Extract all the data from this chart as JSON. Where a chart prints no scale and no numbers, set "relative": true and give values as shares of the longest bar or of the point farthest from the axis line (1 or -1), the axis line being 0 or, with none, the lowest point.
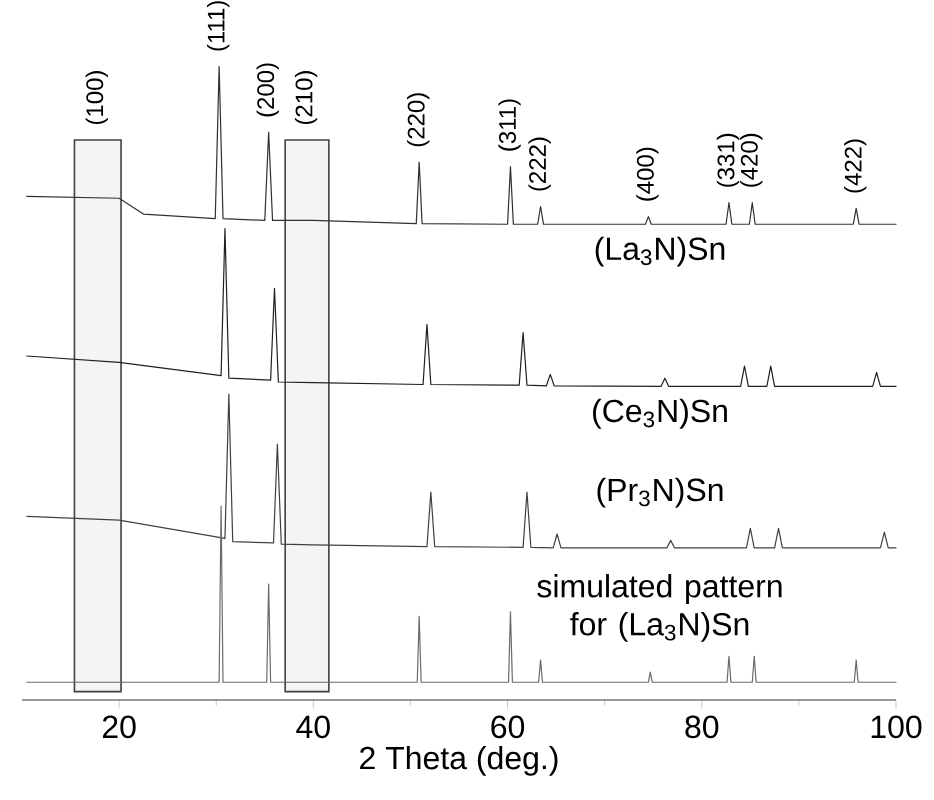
{
  "chart_data": {
    "type": "line",
    "relative": true,
    "xlabel": "2 Theta (deg.)",
    "xlim": [
      10,
      100
    ],
    "xticks": [
      20,
      40,
      60,
      80,
      100
    ],
    "legend": false,
    "grid": false,
    "marker": "none",
    "line_style": "solid",
    "series": [
      {
        "name": "(La$_{3}$N)Sn",
        "color": "#303030",
        "x": [
          10.5,
          20,
          22.5,
          29.9,
          30.3,
          30.7,
          35.0,
          35.4,
          35.8,
          40,
          50.6,
          50.9,
          51.2,
          60.0,
          60.3,
          60.6,
          63.1,
          63.4,
          63.7,
          74.2,
          74.5,
          74.8,
          82.5,
          82.8,
          83.1,
          84.9,
          85.2,
          85.5,
          95.6,
          95.9,
          96.2,
          100
        ],
        "values": [
          0.795,
          0.792,
          0.767,
          0.76,
          1.0,
          0.76,
          0.757,
          0.896,
          0.757,
          0.757,
          0.752,
          0.849,
          0.752,
          0.751,
          0.842,
          0.751,
          0.751,
          0.779,
          0.751,
          0.751,
          0.763,
          0.751,
          0.751,
          0.785,
          0.751,
          0.751,
          0.785,
          0.751,
          0.751,
          0.776,
          0.751,
          0.751
        ]
      },
      {
        "name": "(Ce$_{3}$N)Sn",
        "color": "#202020",
        "x": [
          10.5,
          20,
          30.5,
          30.9,
          31.3,
          35.6,
          36.0,
          36.4,
          40,
          51.3,
          51.7,
          52.1,
          61.2,
          61.6,
          62.0,
          64.0,
          64.4,
          64.8,
          75.8,
          76.2,
          76.6,
          84.0,
          84.4,
          84.8,
          86.7,
          87.1,
          87.5,
          97.6,
          98.0,
          98.4,
          100
        ],
        "values": [
          0.543,
          0.533,
          0.512,
          0.744,
          0.508,
          0.505,
          0.65,
          0.502,
          0.501,
          0.498,
          0.593,
          0.498,
          0.497,
          0.58,
          0.497,
          0.496,
          0.514,
          0.496,
          0.495,
          0.508,
          0.495,
          0.495,
          0.527,
          0.495,
          0.495,
          0.527,
          0.495,
          0.495,
          0.517,
          0.495,
          0.495
        ]
      },
      {
        "name": "(Pr$_{3}$N)Sn",
        "color": "#404040",
        "x": [
          10.5,
          20,
          30.9,
          31.3,
          31.7,
          35.9,
          36.3,
          36.7,
          40,
          51.7,
          52.1,
          52.5,
          61.6,
          62.0,
          62.4,
          64.7,
          65.1,
          65.5,
          76.4,
          76.8,
          77.2,
          84.6,
          85.0,
          85.4,
          87.5,
          87.9,
          88.3,
          98.4,
          98.8,
          99.2,
          100
        ],
        "values": [
          0.29,
          0.284,
          0.255,
          0.483,
          0.25,
          0.248,
          0.404,
          0.246,
          0.245,
          0.242,
          0.328,
          0.242,
          0.241,
          0.328,
          0.241,
          0.24,
          0.262,
          0.24,
          0.24,
          0.252,
          0.24,
          0.24,
          0.271,
          0.24,
          0.24,
          0.271,
          0.24,
          0.24,
          0.265,
          0.24,
          0.24
        ]
      },
      {
        "name": "simulated pattern for (La$_{3}$N)Sn",
        "color": "#6a6a6a",
        "x": [
          10.5,
          30.3,
          30.5,
          30.7,
          35.2,
          35.4,
          35.6,
          50.7,
          50.9,
          51.1,
          60.1,
          60.3,
          60.5,
          63.2,
          63.4,
          63.6,
          74.5,
          74.7,
          74.9,
          82.6,
          82.8,
          83.0,
          85.2,
          85.4,
          85.6,
          95.7,
          95.9,
          96.1,
          100
        ],
        "values": [
          0.028,
          0.028,
          0.306,
          0.028,
          0.028,
          0.183,
          0.028,
          0.028,
          0.132,
          0.028,
          0.028,
          0.139,
          0.028,
          0.028,
          0.063,
          0.028,
          0.028,
          0.044,
          0.028,
          0.028,
          0.069,
          0.028,
          0.028,
          0.069,
          0.028,
          0.028,
          0.063,
          0.028,
          0.028
        ]
      }
    ],
    "annotations": [
      {
        "text": "(100)",
        "x": 17.8,
        "y": 0.884
      },
      {
        "text": "(111)",
        "x": 30.3,
        "y": 1.0
      },
      {
        "text": "(200)",
        "x": 35.4,
        "y": 0.896
      },
      {
        "text": "(210)",
        "x": 39.35,
        "y": 0.884
      },
      {
        "text": "(220)",
        "x": 50.9,
        "y": 0.849
      },
      {
        "text": "(311)",
        "x": 60.3,
        "y": 0.842
      },
      {
        "text": "(222)",
        "x": 63.4,
        "y": 0.779
      },
      {
        "text": "(400)",
        "x": 74.5,
        "y": 0.763
      },
      {
        "text": "(331)",
        "x": 82.8,
        "y": 0.785
      },
      {
        "text": "(420)",
        "x": 85.2,
        "y": 0.785
      },
      {
        "text": "(422)",
        "x": 95.9,
        "y": 0.776
      }
    ],
    "bands": [
      {
        "axis": "x",
        "from": 15.4,
        "to": 20.2,
        "color": "#404040"
      },
      {
        "axis": "x",
        "from": 37.1,
        "to": 41.6,
        "color": "#404040"
      }
    ]
  }
}
